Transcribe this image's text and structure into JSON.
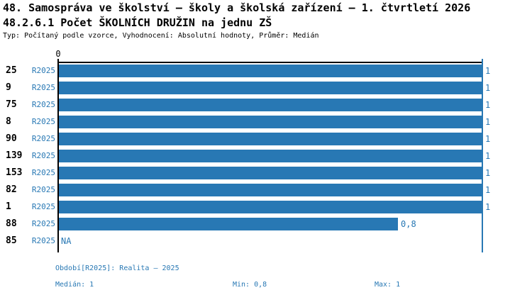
{
  "header": {
    "title": "48. Samospráva ve školství – školy a školská zařízení – 1. čtvrtletí 2026",
    "subtitle": "48.2.6.1 Počet ŠKOLNÍCH DRUŽIN na jednu ZŠ",
    "meta": "Typ: Počítaný podle vzorce, Vyhodnocení: Absolutní hodnoty, Průměr: Medián"
  },
  "chart_data": {
    "type": "bar",
    "orientation": "horizontal",
    "title": "48.2.6.1 Počet ŠKOLNÍCH DRUŽIN na jednu ZŠ",
    "categories": [
      "25",
      "9",
      "75",
      "8",
      "90",
      "139",
      "153",
      "82",
      "1",
      "88",
      "85"
    ],
    "series_label": "R2025",
    "values": [
      1,
      1,
      1,
      1,
      1,
      1,
      1,
      1,
      1,
      0.8,
      null
    ],
    "value_labels": [
      "1",
      "1",
      "1",
      "1",
      "1",
      "1",
      "1",
      "1",
      "1",
      "0,8",
      "NA"
    ],
    "xlim": [
      0,
      1
    ],
    "x_tick_labels": [
      "0"
    ],
    "grid": false,
    "legend": false,
    "colors": {
      "bar": "#2878b4",
      "axis": "#000000",
      "max_line": "#2878b4",
      "value_label": "#2878b4",
      "series_label": "#2878b4",
      "category_label": "#000000"
    }
  },
  "footer": {
    "period": "Období[R2025]: Realita – 2025",
    "median": "Medián: 1",
    "min": "Min: 0,8",
    "max": "Max: 1"
  }
}
